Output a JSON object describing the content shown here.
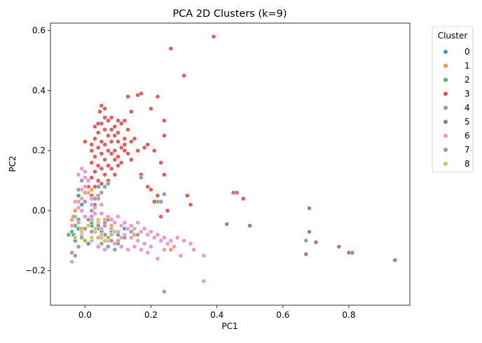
{
  "chart_data": {
    "type": "scatter",
    "title": "PCA 2D Clusters (k=9)",
    "xlabel": "PC1",
    "ylabel": "PC2",
    "xlim": [
      -0.105,
      0.985
    ],
    "ylim": [
      -0.315,
      0.625
    ],
    "xticks": [
      {
        "value": 0.0,
        "label": "0.0"
      },
      {
        "value": 0.2,
        "label": "0.2"
      },
      {
        "value": 0.4,
        "label": "0.4"
      },
      {
        "value": 0.6,
        "label": "0.6"
      },
      {
        "value": 0.8,
        "label": "0.8"
      }
    ],
    "yticks": [
      {
        "value": -0.2,
        "label": "−0.2"
      },
      {
        "value": 0.0,
        "label": "0.0"
      },
      {
        "value": 0.2,
        "label": "0.2"
      },
      {
        "value": 0.4,
        "label": "0.4"
      },
      {
        "value": 0.6,
        "label": "0.6"
      }
    ],
    "grid": false,
    "legend": {
      "title": "Cluster",
      "placement": "outside-right-top",
      "entries": [
        "0",
        "1",
        "2",
        "3",
        "4",
        "5",
        "6",
        "7",
        "8"
      ]
    },
    "series": [
      {
        "name": "0",
        "color": "#1f77b4",
        "points": [
          [
            -0.035,
            -0.08
          ],
          [
            -0.02,
            -0.06
          ],
          [
            -0.01,
            0.02
          ],
          [
            0.02,
            -0.05
          ],
          [
            0.05,
            -0.07
          ],
          [
            0.07,
            -0.09
          ],
          [
            0.1,
            -0.08
          ],
          [
            -0.03,
            -0.1
          ],
          [
            0.04,
            0.08
          ],
          [
            0.01,
            -0.11
          ],
          [
            -0.02,
            0.05
          ],
          [
            0.12,
            -0.06
          ]
        ]
      },
      {
        "name": "1",
        "color": "#ff7f0e",
        "points": [
          [
            -0.04,
            -0.03
          ],
          [
            -0.03,
            0.0
          ],
          [
            -0.02,
            0.03
          ],
          [
            0.0,
            0.06
          ],
          [
            0.02,
            0.07
          ],
          [
            0.03,
            0.02
          ],
          [
            0.06,
            -0.03
          ],
          [
            0.08,
            -0.05
          ],
          [
            0.26,
            -0.13
          ],
          [
            0.1,
            -0.1
          ],
          [
            -0.01,
            -0.06
          ],
          [
            0.04,
            -0.09
          ],
          [
            0.15,
            -0.08
          ]
        ]
      },
      {
        "name": "2",
        "color": "#2ca02c",
        "points": [
          [
            -0.05,
            -0.08
          ],
          [
            -0.04,
            -0.07
          ],
          [
            -0.03,
            -0.05
          ],
          [
            0.0,
            -0.1
          ],
          [
            0.22,
            0.03
          ],
          [
            0.04,
            -0.06
          ],
          [
            0.02,
            -0.04
          ],
          [
            -0.02,
            -0.03
          ],
          [
            0.06,
            -0.08
          ],
          [
            0.08,
            -0.07
          ],
          [
            -0.035,
            -0.02
          ]
        ]
      },
      {
        "name": "3",
        "color": "#d62728",
        "points": [
          [
            0.39,
            0.58
          ],
          [
            0.26,
            0.54
          ],
          [
            0.3,
            0.45
          ],
          [
            0.17,
            0.39
          ],
          [
            0.16,
            0.385
          ],
          [
            0.22,
            0.38
          ],
          [
            0.13,
            0.38
          ],
          [
            0.05,
            0.35
          ],
          [
            0.06,
            0.34
          ],
          [
            0.045,
            0.33
          ],
          [
            0.14,
            0.33
          ],
          [
            0.2,
            0.34
          ],
          [
            0.08,
            0.31
          ],
          [
            0.1,
            0.3
          ],
          [
            0.07,
            0.3
          ],
          [
            0.12,
            0.3
          ],
          [
            0.24,
            0.3
          ],
          [
            0.05,
            0.29
          ],
          [
            0.09,
            0.28
          ],
          [
            0.11,
            0.29
          ],
          [
            0.03,
            0.28
          ],
          [
            0.06,
            0.27
          ],
          [
            0.08,
            0.27
          ],
          [
            0.1,
            0.26
          ],
          [
            0.13,
            0.27
          ],
          [
            0.04,
            0.26
          ],
          [
            0.07,
            0.25
          ],
          [
            0.09,
            0.25
          ],
          [
            0.12,
            0.24
          ],
          [
            0.24,
            0.25
          ],
          [
            0.03,
            0.24
          ],
          [
            0.05,
            0.23
          ],
          [
            0.08,
            0.23
          ],
          [
            0.1,
            0.23
          ],
          [
            0.14,
            0.23
          ],
          [
            0.02,
            0.22
          ],
          [
            0.06,
            0.22
          ],
          [
            0.11,
            0.21
          ],
          [
            0.04,
            0.21
          ],
          [
            0.07,
            0.2
          ],
          [
            0.09,
            0.2
          ],
          [
            0.12,
            0.2
          ],
          [
            0.13,
            0.19
          ],
          [
            0.18,
            0.21
          ],
          [
            0.19,
            0.22
          ],
          [
            0.02,
            0.2
          ],
          [
            0.05,
            0.19
          ],
          [
            0.08,
            0.19
          ],
          [
            0.1,
            0.18
          ],
          [
            0.03,
            0.18
          ],
          [
            0.06,
            0.17
          ],
          [
            0.09,
            0.17
          ],
          [
            0.11,
            0.16
          ],
          [
            0.02,
            0.16
          ],
          [
            0.04,
            0.15
          ],
          [
            0.07,
            0.15
          ],
          [
            0.1,
            0.15
          ],
          [
            0.05,
            0.14
          ],
          [
            0.08,
            0.14
          ],
          [
            0.03,
            0.13
          ],
          [
            0.06,
            0.12
          ],
          [
            0.09,
            0.12
          ],
          [
            0.02,
            0.11
          ],
          [
            0.04,
            0.1
          ],
          [
            0.07,
            0.1
          ],
          [
            0.05,
            0.09
          ],
          [
            0.03,
            0.08
          ],
          [
            0.01,
            0.08
          ],
          [
            0.02,
            0.05
          ],
          [
            0.0,
            0.23
          ],
          [
            0.21,
            0.2
          ],
          [
            0.24,
            0.12
          ],
          [
            0.23,
            0.16
          ],
          [
            0.19,
            0.08
          ],
          [
            0.17,
            0.12
          ],
          [
            0.2,
            0.07
          ],
          [
            0.22,
            0.05
          ],
          [
            0.25,
            0.0
          ],
          [
            0.21,
            0.03
          ],
          [
            0.23,
            -0.02
          ],
          [
            0.31,
            0.05
          ],
          [
            0.32,
            0.02
          ],
          [
            0.48,
            0.04
          ],
          [
            0.46,
            0.06
          ],
          [
            0.12,
            0.22
          ],
          [
            0.15,
            0.24
          ],
          [
            0.16,
            0.2
          ],
          [
            0.14,
            0.17
          ],
          [
            0.06,
            0.31
          ],
          [
            0.04,
            0.29
          ]
        ]
      },
      {
        "name": "4",
        "color": "#9467bd",
        "points": [
          [
            0.17,
            0.11
          ],
          [
            0.24,
            0.055
          ],
          [
            0.23,
            0.03
          ],
          [
            0.04,
            0.05
          ],
          [
            0.0,
            0.03
          ],
          [
            0.02,
            -0.02
          ],
          [
            0.06,
            -0.05
          ],
          [
            -0.01,
            0.1
          ]
        ]
      },
      {
        "name": "5",
        "color": "#8c564b",
        "points": [
          [
            0.94,
            -0.165
          ],
          [
            0.81,
            -0.14
          ],
          [
            0.8,
            -0.14
          ],
          [
            0.77,
            -0.12
          ],
          [
            0.7,
            -0.105
          ],
          [
            0.68,
            -0.07
          ],
          [
            0.67,
            -0.145
          ],
          [
            0.68,
            0.008
          ],
          [
            0.5,
            -0.05
          ],
          [
            0.43,
            -0.045
          ],
          [
            0.45,
            0.06
          ],
          [
            0.07,
            -0.03
          ]
        ]
      },
      {
        "name": "6",
        "color": "#e377c2",
        "points": [
          [
            -0.04,
            -0.05
          ],
          [
            -0.03,
            -0.02
          ],
          [
            -0.02,
            0.01
          ],
          [
            -0.01,
            0.04
          ],
          [
            0.0,
            0.08
          ],
          [
            0.0,
            0.11
          ],
          [
            -0.01,
            0.14
          ],
          [
            0.0,
            0.13
          ],
          [
            -0.02,
            0.12
          ],
          [
            0.01,
            0.1
          ],
          [
            -0.01,
            0.07
          ],
          [
            0.02,
            0.04
          ],
          [
            0.03,
            0.01
          ],
          [
            0.05,
            -0.01
          ],
          [
            0.07,
            -0.02
          ],
          [
            0.09,
            -0.04
          ],
          [
            0.11,
            -0.05
          ],
          [
            0.13,
            -0.06
          ],
          [
            0.15,
            -0.06
          ],
          [
            0.17,
            -0.07
          ],
          [
            0.19,
            -0.08
          ],
          [
            0.21,
            -0.09
          ],
          [
            0.23,
            -0.1
          ],
          [
            0.25,
            -0.11
          ],
          [
            0.27,
            -0.12
          ],
          [
            0.29,
            -0.15
          ],
          [
            0.33,
            -0.13
          ],
          [
            0.36,
            -0.15
          ],
          [
            0.36,
            -0.235
          ],
          [
            0.22,
            -0.16
          ],
          [
            0.2,
            -0.12
          ],
          [
            0.18,
            -0.11
          ],
          [
            0.16,
            -0.1
          ],
          [
            0.14,
            -0.09
          ],
          [
            0.12,
            -0.08
          ],
          [
            0.1,
            -0.07
          ],
          [
            0.08,
            -0.06
          ],
          [
            0.06,
            -0.05
          ],
          [
            0.04,
            -0.04
          ],
          [
            0.02,
            -0.03
          ],
          [
            0.0,
            -0.02
          ],
          [
            -0.02,
            -0.04
          ],
          [
            0.03,
            -0.07
          ],
          [
            0.05,
            -0.09
          ],
          [
            0.07,
            -0.1
          ],
          [
            0.09,
            -0.11
          ],
          [
            0.11,
            -0.12
          ],
          [
            0.13,
            -0.13
          ],
          [
            0.15,
            -0.12
          ],
          [
            0.17,
            -0.13
          ],
          [
            0.19,
            -0.14
          ],
          [
            0.06,
            -0.13
          ],
          [
            0.04,
            -0.12
          ],
          [
            0.02,
            -0.1
          ],
          [
            -0.01,
            -0.08
          ],
          [
            0.03,
            -0.01
          ],
          [
            0.05,
            0.02
          ],
          [
            0.08,
            -0.03
          ],
          [
            0.1,
            -0.02
          ],
          [
            0.12,
            -0.04
          ],
          [
            0.14,
            -0.05
          ],
          [
            0.16,
            -0.04
          ],
          [
            0.18,
            -0.06
          ],
          [
            0.2,
            -0.07
          ],
          [
            0.22,
            -0.08
          ],
          [
            0.24,
            -0.09
          ],
          [
            0.26,
            -0.1
          ],
          [
            -0.04,
            -0.17
          ],
          [
            0.28,
            -0.09
          ],
          [
            0.3,
            -0.1
          ],
          [
            0.32,
            -0.11
          ],
          [
            0.24,
            -0.13
          ],
          [
            0.11,
            -0.09
          ],
          [
            0.08,
            -0.08
          ],
          [
            0.05,
            -0.06
          ],
          [
            0.02,
            0.02
          ],
          [
            -0.01,
            0.0
          ],
          [
            0.01,
            0.06
          ],
          [
            -0.03,
            0.03
          ]
        ]
      },
      {
        "name": "7",
        "color": "#7f7f7f",
        "points": [
          [
            -0.04,
            -0.14
          ],
          [
            -0.03,
            -0.15
          ],
          [
            -0.02,
            -0.12
          ],
          [
            -0.01,
            -0.09
          ],
          [
            0.0,
            -0.06
          ],
          [
            0.01,
            -0.03
          ],
          [
            0.02,
            0.0
          ],
          [
            0.03,
            0.02
          ],
          [
            0.04,
            0.04
          ],
          [
            0.05,
            0.06
          ],
          [
            0.06,
            0.08
          ],
          [
            0.07,
            0.09
          ],
          [
            0.03,
            0.04
          ],
          [
            0.24,
            -0.27
          ],
          [
            0.67,
            -0.1
          ],
          [
            0.02,
            -0.07
          ],
          [
            0.04,
            -0.05
          ],
          [
            0.06,
            -0.04
          ],
          [
            0.08,
            -0.1
          ],
          [
            0.1,
            -0.11
          ],
          [
            0.12,
            -0.09
          ],
          [
            0.14,
            -0.07
          ],
          [
            0.16,
            -0.08
          ],
          [
            0.05,
            -0.11
          ],
          [
            0.07,
            -0.12
          ],
          [
            0.09,
            -0.13
          ],
          [
            -0.02,
            0.07
          ]
        ]
      },
      {
        "name": "8",
        "color": "#bcbd22",
        "points": [
          [
            -0.03,
            -0.09
          ],
          [
            -0.01,
            -0.07
          ],
          [
            0.01,
            -0.05
          ],
          [
            0.03,
            -0.06
          ],
          [
            0.05,
            -0.08
          ],
          [
            0.07,
            -0.09
          ],
          [
            0.09,
            -0.07
          ],
          [
            0.04,
            -0.03
          ],
          [
            0.06,
            -0.1
          ],
          [
            0.02,
            -0.09
          ],
          [
            0.0,
            -0.1
          ]
        ]
      }
    ]
  }
}
